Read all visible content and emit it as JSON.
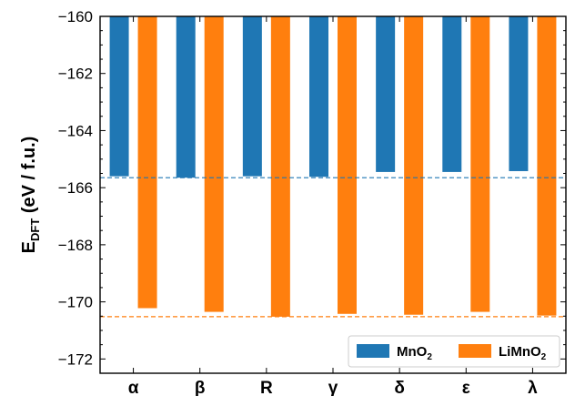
{
  "chart_data": {
    "type": "bar",
    "categories": [
      "α",
      "β",
      "R",
      "γ",
      "δ",
      "ε",
      "λ"
    ],
    "series": [
      {
        "name": "MnO₂",
        "values": [
          -165.6,
          -165.65,
          -165.6,
          -165.62,
          -165.45,
          -165.45,
          -165.42
        ],
        "color": "#1f77b4"
      },
      {
        "name": "LiMnO₂",
        "values": [
          -170.22,
          -170.35,
          -170.52,
          -170.42,
          -170.45,
          -170.35,
          -170.48
        ],
        "color": "#ff7f0e"
      }
    ],
    "reference_lines": [
      {
        "value": -165.65,
        "color": "#1f77b4",
        "style": "dashed"
      },
      {
        "value": -170.52,
        "color": "#ff7f0e",
        "style": "dashed"
      }
    ],
    "ylabel": "E_DFT (eV / f.u.)",
    "ylabel_main": "E",
    "ylabel_sub": "DFT",
    "ylabel_rest": " (eV / f.u.)",
    "xlabel": "",
    "ylim": [
      -172.5,
      -160
    ],
    "yticks": [
      -160,
      -162,
      -164,
      -166,
      -168,
      -170,
      -172
    ],
    "ytick_labels": [
      "−160",
      "−162",
      "−164",
      "−166",
      "−168",
      "−170",
      "−172"
    ],
    "bar_baseline": -160,
    "grid": false,
    "legend_position": "bottom-right",
    "legend_labels": {
      "mno2_main": "MnO",
      "mno2_sub": "2",
      "limno2_main": "LiMnO",
      "limno2_sub": "2"
    }
  }
}
